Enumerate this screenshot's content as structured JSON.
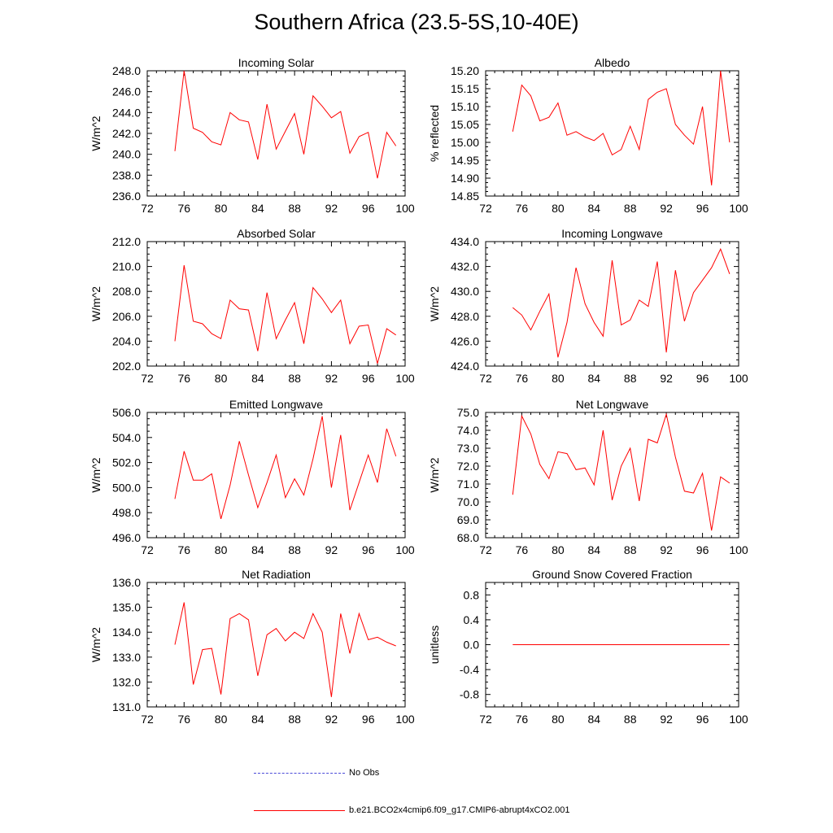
{
  "figure": {
    "title": "Southern Africa (23.5-5S,10-40E)"
  },
  "legend": {
    "obs_label": "No Obs",
    "model_label": "b.e21.BCO2x4cmip6.f09_g17.CMIP6-abrupt4xCO2.001",
    "obs_color": "#4a4ad8",
    "model_color": "#ff0000"
  },
  "chart_data": [
    {
      "type": "line",
      "title": "Incoming Solar",
      "ylabel": "W/m^2",
      "xlabel": "",
      "xlim": [
        72,
        100
      ],
      "xticks": [
        "72",
        "76",
        "80",
        "84",
        "88",
        "92",
        "96",
        "100"
      ],
      "ylim": [
        236,
        248
      ],
      "yticks": [
        "236.0",
        "238.0",
        "240.0",
        "242.0",
        "244.0",
        "246.0",
        "248.0"
      ],
      "series": [
        {
          "name": "b.e21.BCO2x4cmip6.f09_g17.CMIP6-abrupt4xCO2.001",
          "x": [
            75,
            76,
            77,
            78,
            79,
            80,
            81,
            82,
            83,
            84,
            85,
            86,
            87,
            88,
            89,
            90,
            91,
            92,
            93,
            94,
            95,
            96,
            97,
            98,
            99
          ],
          "values": [
            240.3,
            248.0,
            242.5,
            242.1,
            241.2,
            240.9,
            244.0,
            243.3,
            243.1,
            239.5,
            244.8,
            240.5,
            242.2,
            243.9,
            240.0,
            245.6,
            244.6,
            243.5,
            244.1,
            240.1,
            241.7,
            242.1,
            237.7,
            242.1,
            240.8
          ]
        }
      ]
    },
    {
      "type": "line",
      "title": "Albedo",
      "ylabel": "% reflected",
      "xlabel": "",
      "xlim": [
        72,
        100
      ],
      "xticks": [
        "72",
        "76",
        "80",
        "84",
        "88",
        "92",
        "96",
        "100"
      ],
      "ylim": [
        14.85,
        15.2
      ],
      "yticks": [
        "14.85",
        "14.90",
        "14.95",
        "15.00",
        "15.05",
        "15.10",
        "15.15",
        "15.20"
      ],
      "series": [
        {
          "name": "b.e21.BCO2x4cmip6.f09_g17.CMIP6-abrupt4xCO2.001",
          "x": [
            75,
            76,
            77,
            78,
            79,
            80,
            81,
            82,
            83,
            84,
            85,
            86,
            87,
            88,
            89,
            90,
            91,
            92,
            93,
            94,
            95,
            96,
            97,
            98,
            99
          ],
          "values": [
            15.03,
            15.16,
            15.13,
            15.06,
            15.07,
            15.11,
            15.02,
            15.03,
            15.015,
            15.005,
            15.025,
            14.965,
            14.98,
            15.045,
            14.98,
            15.12,
            15.14,
            15.15,
            15.05,
            15.02,
            14.995,
            15.1,
            14.88,
            15.2,
            15.0
          ]
        }
      ]
    },
    {
      "type": "line",
      "title": "Absorbed Solar",
      "ylabel": "W/m^2",
      "xlabel": "",
      "xlim": [
        72,
        100
      ],
      "xticks": [
        "72",
        "76",
        "80",
        "84",
        "88",
        "92",
        "96",
        "100"
      ],
      "ylim": [
        202,
        212
      ],
      "yticks": [
        "202.0",
        "204.0",
        "206.0",
        "208.0",
        "210.0",
        "212.0"
      ],
      "series": [
        {
          "name": "b.e21.BCO2x4cmip6.f09_g17.CMIP6-abrupt4xCO2.001",
          "x": [
            75,
            76,
            77,
            78,
            79,
            80,
            81,
            82,
            83,
            84,
            85,
            86,
            87,
            88,
            89,
            90,
            91,
            92,
            93,
            94,
            95,
            96,
            97,
            98,
            99
          ],
          "values": [
            204.0,
            210.1,
            205.6,
            205.4,
            204.6,
            204.2,
            207.3,
            206.6,
            206.5,
            203.2,
            207.9,
            204.2,
            205.7,
            207.1,
            203.8,
            208.3,
            207.4,
            206.3,
            207.3,
            203.8,
            205.2,
            205.3,
            202.2,
            205.0,
            204.5
          ]
        }
      ]
    },
    {
      "type": "line",
      "title": "Incoming Longwave",
      "ylabel": "W/m^2",
      "xlabel": "",
      "xlim": [
        72,
        100
      ],
      "xticks": [
        "72",
        "76",
        "80",
        "84",
        "88",
        "92",
        "96",
        "100"
      ],
      "ylim": [
        424,
        434
      ],
      "yticks": [
        "424.0",
        "426.0",
        "428.0",
        "430.0",
        "432.0",
        "434.0"
      ],
      "series": [
        {
          "name": "b.e21.BCO2x4cmip6.f09_g17.CMIP6-abrupt4xCO2.001",
          "x": [
            75,
            76,
            77,
            78,
            79,
            80,
            81,
            82,
            83,
            84,
            85,
            86,
            87,
            88,
            89,
            90,
            91,
            92,
            93,
            94,
            95,
            96,
            97,
            98,
            99
          ],
          "values": [
            428.7,
            428.1,
            426.9,
            428.4,
            429.8,
            424.7,
            427.5,
            431.9,
            429.0,
            427.5,
            426.4,
            432.5,
            427.3,
            427.7,
            429.3,
            428.8,
            432.4,
            425.1,
            431.7,
            427.6,
            429.9,
            430.9,
            431.9,
            433.4,
            431.4
          ]
        }
      ]
    },
    {
      "type": "line",
      "title": "Emitted Longwave",
      "ylabel": "W/m^2",
      "xlabel": "",
      "xlim": [
        72,
        100
      ],
      "xticks": [
        "72",
        "76",
        "80",
        "84",
        "88",
        "92",
        "96",
        "100"
      ],
      "ylim": [
        496,
        506
      ],
      "yticks": [
        "496.0",
        "498.0",
        "500.0",
        "502.0",
        "504.0",
        "506.0"
      ],
      "series": [
        {
          "name": "b.e21.BCO2x4cmip6.f09_g17.CMIP6-abrupt4xCO2.001",
          "x": [
            75,
            76,
            77,
            78,
            79,
            80,
            81,
            82,
            83,
            84,
            85,
            86,
            87,
            88,
            89,
            90,
            91,
            92,
            93,
            94,
            95,
            96,
            97,
            98,
            99
          ],
          "values": [
            499.1,
            502.9,
            500.6,
            500.6,
            501.1,
            497.5,
            500.2,
            503.7,
            501.0,
            498.4,
            500.4,
            502.6,
            499.2,
            500.7,
            499.4,
            502.3,
            505.7,
            500.0,
            504.2,
            498.2,
            500.4,
            502.6,
            500.4,
            504.7,
            502.5
          ]
        }
      ]
    },
    {
      "type": "line",
      "title": "Net Longwave",
      "ylabel": "W/m^2",
      "xlabel": "",
      "xlim": [
        72,
        100
      ],
      "xticks": [
        "72",
        "76",
        "80",
        "84",
        "88",
        "92",
        "96",
        "100"
      ],
      "ylim": [
        68,
        75
      ],
      "yticks": [
        "68.0",
        "69.0",
        "70.0",
        "71.0",
        "72.0",
        "73.0",
        "74.0",
        "75.0"
      ],
      "series": [
        {
          "name": "b.e21.BCO2x4cmip6.f09_g17.CMIP6-abrupt4xCO2.001",
          "x": [
            75,
            76,
            77,
            78,
            79,
            80,
            81,
            82,
            83,
            84,
            85,
            86,
            87,
            88,
            89,
            90,
            91,
            92,
            93,
            94,
            95,
            96,
            97,
            98,
            99
          ],
          "values": [
            70.4,
            74.8,
            73.8,
            72.1,
            71.3,
            72.8,
            72.7,
            71.8,
            71.9,
            70.95,
            74.0,
            70.1,
            72.0,
            73.0,
            70.05,
            73.5,
            73.3,
            74.9,
            72.5,
            70.6,
            70.5,
            71.6,
            68.4,
            71.4,
            71.05
          ]
        }
      ]
    },
    {
      "type": "line",
      "title": "Net Radiation",
      "ylabel": "W/m^2",
      "xlabel": "",
      "xlim": [
        72,
        100
      ],
      "xticks": [
        "72",
        "76",
        "80",
        "84",
        "88",
        "92",
        "96",
        "100"
      ],
      "ylim": [
        131,
        136
      ],
      "yticks": [
        "131.0",
        "132.0",
        "133.0",
        "134.0",
        "135.0",
        "136.0"
      ],
      "series": [
        {
          "name": "b.e21.BCO2x4cmip6.f09_g17.CMIP6-abrupt4xCO2.001",
          "x": [
            75,
            76,
            77,
            78,
            79,
            80,
            81,
            82,
            83,
            84,
            85,
            86,
            87,
            88,
            89,
            90,
            91,
            92,
            93,
            94,
            95,
            96,
            97,
            98,
            99
          ],
          "values": [
            133.5,
            135.2,
            131.9,
            133.3,
            133.35,
            131.5,
            134.55,
            134.75,
            134.5,
            132.25,
            133.9,
            134.15,
            133.65,
            134.0,
            133.75,
            134.75,
            134.0,
            131.4,
            134.75,
            133.15,
            134.75,
            133.7,
            133.8,
            133.6,
            133.45
          ]
        }
      ]
    },
    {
      "type": "line",
      "title": "Ground Snow Covered Fraction",
      "ylabel": "unitless",
      "xlabel": "",
      "xlim": [
        72,
        100
      ],
      "xticks": [
        "72",
        "76",
        "80",
        "84",
        "88",
        "92",
        "96",
        "100"
      ],
      "ylim": [
        -1.0,
        1.0
      ],
      "yticks": [
        "-0.8",
        "-0.4",
        "0.0",
        "0.4",
        "0.8"
      ],
      "series": [
        {
          "name": "b.e21.BCO2x4cmip6.f09_g17.CMIP6-abrupt4xCO2.001",
          "x": [
            75,
            99
          ],
          "values": [
            0.0,
            0.0
          ]
        }
      ]
    }
  ]
}
